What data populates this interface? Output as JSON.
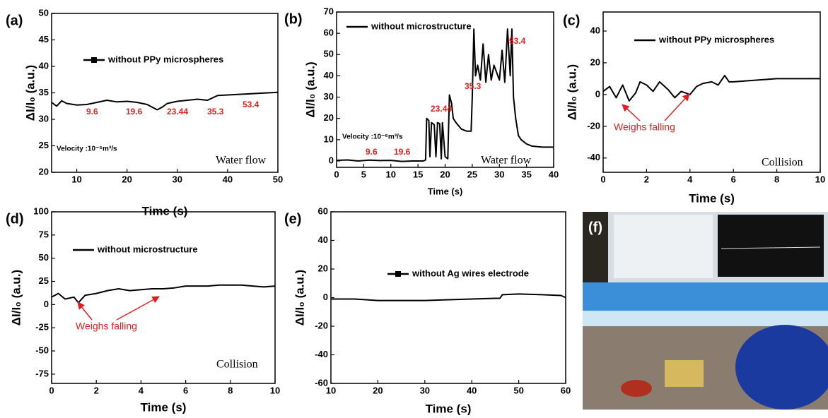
{
  "chart_data": [
    {
      "type": "line",
      "panel": "(a)",
      "x_label": "Time (s)",
      "y_label": "ΔI/I₀ (a.u.)",
      "xlim": [
        5,
        50
      ],
      "xticks": [
        10,
        20,
        30,
        40,
        50
      ],
      "ylim": [
        20,
        50
      ],
      "yticks": [
        20,
        25,
        30,
        35,
        40,
        45,
        50
      ],
      "x": [
        5,
        6,
        7,
        8,
        10,
        12,
        14,
        16,
        18,
        20,
        22,
        24,
        26,
        27,
        28,
        30,
        32,
        34,
        36,
        38,
        40,
        42,
        44,
        46,
        48,
        50
      ],
      "series": [
        {
          "name": "without PPy microspheres",
          "color": "#000000",
          "marker": "square",
          "values": [
            33.2,
            32.5,
            33.5,
            33,
            32.7,
            32.8,
            33.2,
            33.6,
            33.3,
            33.4,
            33.2,
            32.8,
            31.8,
            32.3,
            33,
            33.4,
            33.6,
            33.8,
            33.6,
            34.5,
            34.6,
            34.7,
            34.8,
            34.9,
            35,
            35.1
          ]
        }
      ],
      "annotations": [
        "9.6",
        "19.6",
        "23.44",
        "35.3",
        "53.4"
      ],
      "notes": [
        "Velocity :10⁻⁵m³/s",
        "Water flow"
      ]
    },
    {
      "type": "line",
      "panel": "(b)",
      "x_label": "Time (s)",
      "y_label": "ΔI/I₀ (a.u.)",
      "xlim": [
        0,
        40
      ],
      "xticks": [
        0,
        5,
        10,
        15,
        20,
        25,
        30,
        35,
        40
      ],
      "ylim": [
        -3,
        70
      ],
      "yticks": [
        0,
        10,
        20,
        30,
        40,
        50,
        60,
        70
      ],
      "x": [
        0,
        2,
        4,
        6,
        8,
        10,
        12,
        14,
        16,
        16.4,
        16.6,
        17,
        17.2,
        17.5,
        18,
        18.3,
        18.6,
        19,
        19.3,
        19.5,
        20,
        20.5,
        20.8,
        21.2,
        21.5,
        22,
        23,
        24,
        24.8,
        25,
        25.3,
        25.6,
        26,
        26.5,
        27,
        27.5,
        28,
        28.5,
        29,
        30,
        30.5,
        31,
        31.5,
        32,
        32.3,
        32.6,
        33,
        33.5,
        34,
        35,
        36,
        38,
        40
      ],
      "series": [
        {
          "name": "without microstructure",
          "color": "#000000",
          "values": [
            0.3,
            0.5,
            0,
            0.4,
            0.2,
            0.3,
            -0.2,
            0,
            0,
            0.5,
            20,
            19,
            2,
            18,
            17,
            2,
            18,
            17.5,
            1,
            18,
            2,
            1,
            31,
            27,
            20,
            18,
            15,
            14,
            14,
            30,
            62,
            40,
            45,
            38,
            55,
            37,
            50,
            38,
            45,
            38,
            52,
            37,
            62,
            40,
            62,
            30,
            20,
            12,
            10,
            8,
            7,
            6.5,
            6.5
          ]
        }
      ],
      "annotations": [
        "9.6",
        "19.6",
        "23.44",
        "35.3",
        "53.4"
      ],
      "notes": [
        "Velocity :10⁻⁶m³/s",
        "Water flow"
      ]
    },
    {
      "type": "line",
      "panel": "(c)",
      "x_label": "Time (s)",
      "y_label": "ΔI/I₀ (a.u.)",
      "xlim": [
        0,
        10
      ],
      "xticks": [
        0,
        2,
        4,
        6,
        8,
        10
      ],
      "ylim": [
        -49,
        52
      ],
      "yticks": [
        -40,
        -20,
        0,
        20,
        40
      ],
      "x": [
        0,
        0.3,
        0.6,
        0.9,
        1.2,
        1.5,
        1.7,
        2,
        2.3,
        2.6,
        3,
        3.3,
        3.6,
        4,
        4.3,
        4.6,
        5,
        5.3,
        5.6,
        5.8,
        6,
        7,
        8,
        9,
        10
      ],
      "series": [
        {
          "name": "without PPy microspheres",
          "color": "#000000",
          "values": [
            2,
            5,
            -2,
            6,
            -4,
            1,
            8,
            6,
            2,
            8,
            3,
            -2,
            2,
            0,
            5,
            7,
            8,
            6,
            12,
            8,
            8,
            9,
            10,
            10,
            10
          ]
        }
      ],
      "annotations": [
        "Weighs falling"
      ],
      "notes": [
        "Collision"
      ]
    },
    {
      "type": "line",
      "panel": "(d)",
      "x_label": "Time (s)",
      "y_label": "ΔI/I₀ (a.u.)",
      "xlim": [
        0,
        10
      ],
      "xticks": [
        0,
        2,
        4,
        6,
        8,
        10
      ],
      "ylim": [
        -85,
        100
      ],
      "yticks": [
        -75,
        -50,
        -25,
        0,
        25,
        50,
        75,
        100
      ],
      "x": [
        0,
        0.3,
        0.6,
        1,
        1.2,
        1.5,
        2,
        2.5,
        3,
        3.5,
        4,
        4.5,
        5,
        5.5,
        6,
        6.5,
        7,
        7.5,
        8,
        8.5,
        9,
        9.5,
        10
      ],
      "series": [
        {
          "name": "without microstructure",
          "color": "#000000",
          "values": [
            8,
            12,
            6,
            8,
            2,
            10,
            12,
            15,
            17,
            15,
            16,
            17,
            17,
            18,
            20,
            20,
            20,
            21,
            21,
            21,
            20,
            19,
            20
          ]
        }
      ],
      "annotations": [
        "Weighs falling"
      ],
      "notes": [
        "Collision"
      ]
    },
    {
      "type": "line",
      "panel": "(e)",
      "x_label": "Time (s)",
      "y_label": "ΔI/I₀ (a.u.)",
      "xlim": [
        10,
        60
      ],
      "xticks": [
        10,
        20,
        30,
        40,
        50,
        60
      ],
      "ylim": [
        -60,
        60
      ],
      "yticks": [
        -60,
        -40,
        -20,
        0,
        20,
        40,
        60
      ],
      "x": [
        10,
        15,
        20,
        25,
        30,
        35,
        40,
        45,
        46,
        46.5,
        50,
        55,
        59,
        60
      ],
      "series": [
        {
          "name": "without Ag wires electrode",
          "color": "#000000",
          "marker": "square",
          "values": [
            -1,
            -1,
            -2,
            -2,
            -2,
            -1.5,
            -1,
            -0.5,
            -0.5,
            2,
            2.5,
            2,
            1.5,
            0
          ]
        }
      ],
      "annotations": [],
      "notes": []
    }
  ],
  "photo": {
    "label": "(f)"
  }
}
